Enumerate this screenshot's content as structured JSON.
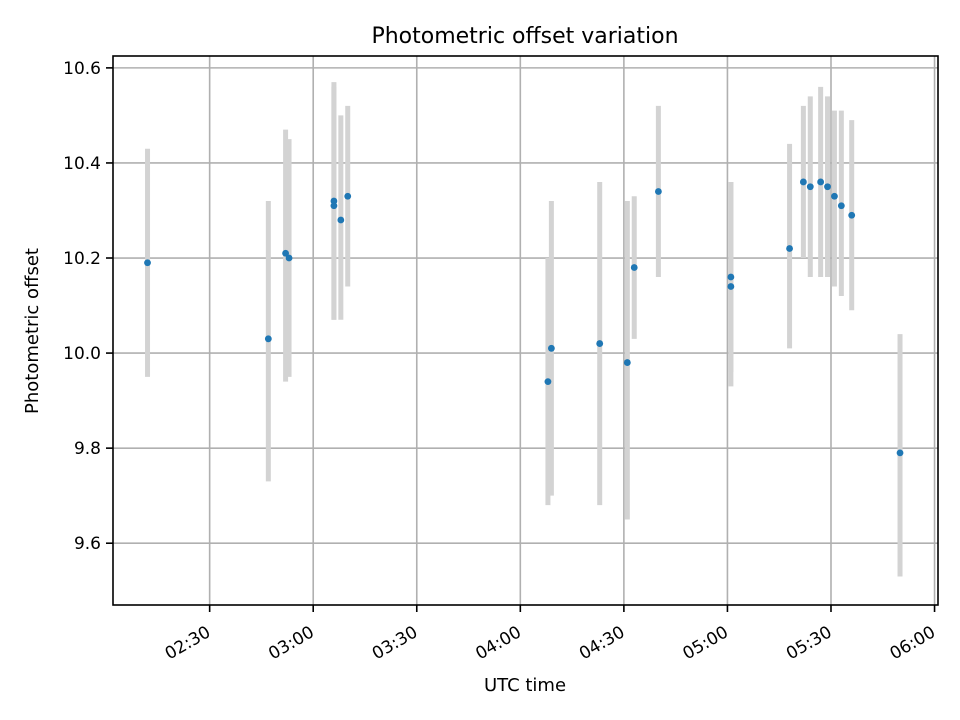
{
  "chart_data": {
    "type": "scatter",
    "title": "Photometric offset variation",
    "xlabel": "UTC time",
    "ylabel": "Photometric offset",
    "x_ticks": [
      "02:30",
      "03:00",
      "03:30",
      "04:00",
      "04:30",
      "05:00",
      "05:30",
      "06:00"
    ],
    "y_ticks": [
      "9.6",
      "9.8",
      "10.0",
      "10.2",
      "10.4",
      "10.6"
    ],
    "xlim": [
      "02:02",
      "06:01"
    ],
    "ylim": [
      9.47,
      10.625
    ],
    "grid": true,
    "colors": {
      "points": "#1f77b4",
      "errorbars": "#d3d3d3"
    },
    "points": [
      {
        "x": "02:12",
        "y": 10.19,
        "ylow": 9.95,
        "yhigh": 10.43
      },
      {
        "x": "02:47",
        "y": 10.03,
        "ylow": 9.73,
        "yhigh": 10.32
      },
      {
        "x": "02:52",
        "y": 10.21,
        "ylow": 9.94,
        "yhigh": 10.47
      },
      {
        "x": "02:53",
        "y": 10.2,
        "ylow": 9.95,
        "yhigh": 10.45
      },
      {
        "x": "03:06",
        "y": 10.32,
        "ylow": 10.07,
        "yhigh": 10.57
      },
      {
        "x": "03:06",
        "y": 10.31,
        "ylow": 10.07,
        "yhigh": 10.56
      },
      {
        "x": "03:08",
        "y": 10.28,
        "ylow": 10.07,
        "yhigh": 10.5
      },
      {
        "x": "03:10",
        "y": 10.33,
        "ylow": 10.14,
        "yhigh": 10.52
      },
      {
        "x": "04:08",
        "y": 9.94,
        "ylow": 9.68,
        "yhigh": 10.2
      },
      {
        "x": "04:09",
        "y": 10.01,
        "ylow": 9.7,
        "yhigh": 10.32
      },
      {
        "x": "04:23",
        "y": 10.02,
        "ylow": 9.68,
        "yhigh": 10.36
      },
      {
        "x": "04:31",
        "y": 9.98,
        "ylow": 9.65,
        "yhigh": 10.32
      },
      {
        "x": "04:33",
        "y": 10.18,
        "ylow": 10.03,
        "yhigh": 10.33
      },
      {
        "x": "04:40",
        "y": 10.34,
        "ylow": 10.16,
        "yhigh": 10.52
      },
      {
        "x": "05:01",
        "y": 10.14,
        "ylow": 9.93,
        "yhigh": 10.36
      },
      {
        "x": "05:01",
        "y": 10.16,
        "ylow": 9.96,
        "yhigh": 10.36
      },
      {
        "x": "05:18",
        "y": 10.22,
        "ylow": 10.01,
        "yhigh": 10.44
      },
      {
        "x": "05:22",
        "y": 10.36,
        "ylow": 10.2,
        "yhigh": 10.52
      },
      {
        "x": "05:24",
        "y": 10.35,
        "ylow": 10.16,
        "yhigh": 10.54
      },
      {
        "x": "05:27",
        "y": 10.36,
        "ylow": 10.16,
        "yhigh": 10.56
      },
      {
        "x": "05:29",
        "y": 10.35,
        "ylow": 10.16,
        "yhigh": 10.54
      },
      {
        "x": "05:31",
        "y": 10.33,
        "ylow": 10.14,
        "yhigh": 10.51
      },
      {
        "x": "05:33",
        "y": 10.31,
        "ylow": 10.12,
        "yhigh": 10.51
      },
      {
        "x": "05:36",
        "y": 10.29,
        "ylow": 10.09,
        "yhigh": 10.49
      },
      {
        "x": "05:50",
        "y": 9.79,
        "ylow": 9.53,
        "yhigh": 10.04
      }
    ]
  }
}
